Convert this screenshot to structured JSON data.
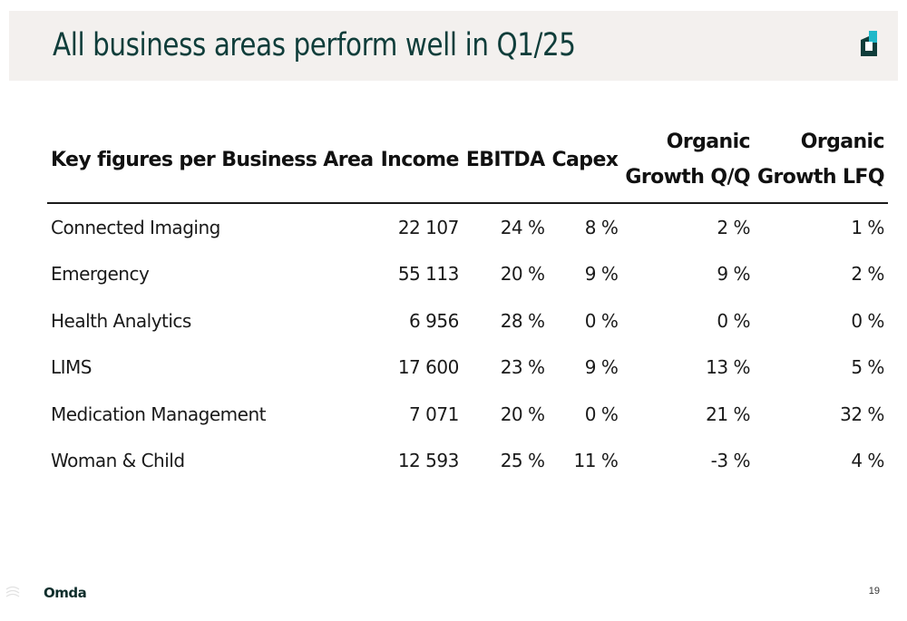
{
  "slide": {
    "title": "All business areas perform well in Q1/25",
    "brand": "Omda",
    "page_number": "19",
    "logo_icon": "omda-logo-mark-icon",
    "colors": {
      "title": "#0f3d3a",
      "header_band": "#f3f0ee",
      "logo_teal": "#1fb8c9",
      "logo_dark": "#0f3d3a"
    }
  },
  "table": {
    "headers": {
      "name": "Key figures per Business Area",
      "income": "Income",
      "ebitda": "EBITDA",
      "capex": "Capex",
      "growth_qq_line1": "Organic",
      "growth_qq_line2": "Growth Q/Q",
      "growth_lfq_line1": "Organic",
      "growth_lfq_line2": "Growth LFQ"
    },
    "rows": [
      {
        "name": "Connected Imaging",
        "income": "22 107",
        "ebitda": "24 %",
        "capex": "8 %",
        "growth_qq": "2 %",
        "growth_lfq": "1 %"
      },
      {
        "name": "Emergency",
        "income": "55 113",
        "ebitda": "20 %",
        "capex": "9 %",
        "growth_qq": "9 %",
        "growth_lfq": "2 %"
      },
      {
        "name": "Health Analytics",
        "income": "6 956",
        "ebitda": "28 %",
        "capex": "0 %",
        "growth_qq": "0 %",
        "growth_lfq": "0 %"
      },
      {
        "name": "LIMS",
        "income": "17 600",
        "ebitda": "23 %",
        "capex": "9 %",
        "growth_qq": "13 %",
        "growth_lfq": "5 %"
      },
      {
        "name": "Medication Management",
        "income": "7 071",
        "ebitda": "20 %",
        "capex": "0 %",
        "growth_qq": "21 %",
        "growth_lfq": "32 %"
      },
      {
        "name": "Woman & Child",
        "income": "12 593",
        "ebitda": "25 %",
        "capex": "11 %",
        "growth_qq": "-3 %",
        "growth_lfq": "4 %"
      }
    ]
  }
}
